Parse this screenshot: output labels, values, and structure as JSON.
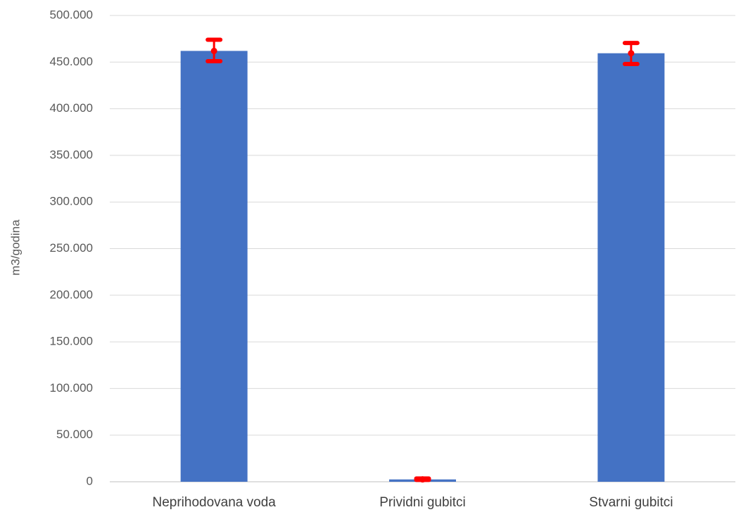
{
  "chart_data": {
    "type": "bar",
    "title": "",
    "xlabel": "",
    "ylabel": "m3/godina",
    "categories": [
      "Neprihodovana voda",
      "Prividni gubitci",
      "Stvarni gubitci"
    ],
    "values": [
      462000,
      2500,
      459500
    ],
    "error_bars": [
      {
        "low": 451000,
        "high": 474000
      },
      {
        "low": 2000,
        "high": 3500
      },
      {
        "low": 448000,
        "high": 470500
      }
    ],
    "ylim": [
      0,
      500000
    ],
    "yticks": [
      0,
      50000,
      100000,
      150000,
      200000,
      250000,
      300000,
      350000,
      400000,
      450000,
      500000
    ],
    "ytick_labels": [
      "0",
      "50.000",
      "100.000",
      "150.000",
      "200.000",
      "250.000",
      "300.000",
      "350.000",
      "400.000",
      "450.000",
      "500.000"
    ],
    "grid": true,
    "legend": "none",
    "colors": {
      "bar": "#4472C4",
      "error": "#FF0000",
      "grid": "#D9D9D9",
      "axis": "#BFBFBF"
    }
  }
}
